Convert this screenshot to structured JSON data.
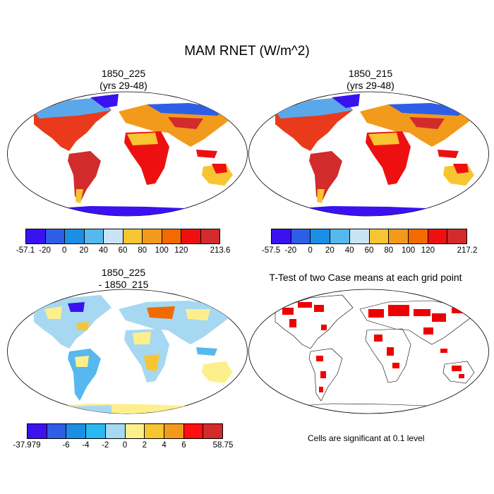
{
  "figure": {
    "title": "MAM RNET (W/m^2)"
  },
  "panels": [
    {
      "title": "1850_225\n(yrs 29-48)",
      "type": "climatology"
    },
    {
      "title": "1850_215\n(yrs 29-48)",
      "type": "climatology"
    },
    {
      "title": "1850_225\n - 1850_215",
      "type": "difference"
    },
    {
      "title": "T-Test of two Case means at each grid point",
      "type": "significance"
    }
  ],
  "colorbars": [
    {
      "labels": [
        "-57.1",
        "-20",
        "0",
        "20",
        "40",
        "60",
        "80",
        "100",
        "120",
        "213.6"
      ],
      "colors": [
        "#3a12f0",
        "#2f5ee6",
        "#1b8fe6",
        "#56b8ee",
        "#c8e4f4",
        "#f7c531",
        "#f29a1c",
        "#f26a00",
        "#ee1010",
        "#d22b2b"
      ]
    },
    {
      "labels": [
        "-57.5",
        "-20",
        "0",
        "20",
        "40",
        "60",
        "80",
        "100",
        "120",
        "217.2"
      ],
      "colors": [
        "#3a12f0",
        "#2f5ee6",
        "#1b8fe6",
        "#56b8ee",
        "#c8e4f4",
        "#f7c531",
        "#f29a1c",
        "#f26a00",
        "#ee1010",
        "#d22b2b"
      ]
    },
    {
      "labels": [
        "-37.979",
        "-6",
        "-4",
        "-2",
        "0",
        "2",
        "4",
        "6",
        "58.75"
      ],
      "colors": [
        "#3a12f0",
        "#2f5ee6",
        "#1b8fe6",
        "#2ab8f0",
        "#a6d8f2",
        "#fdf08c",
        "#f7c531",
        "#f29a1c",
        "#ff0f0f",
        "#d22b2b"
      ]
    }
  ],
  "note": "Cells are significant at 0.1 level"
}
